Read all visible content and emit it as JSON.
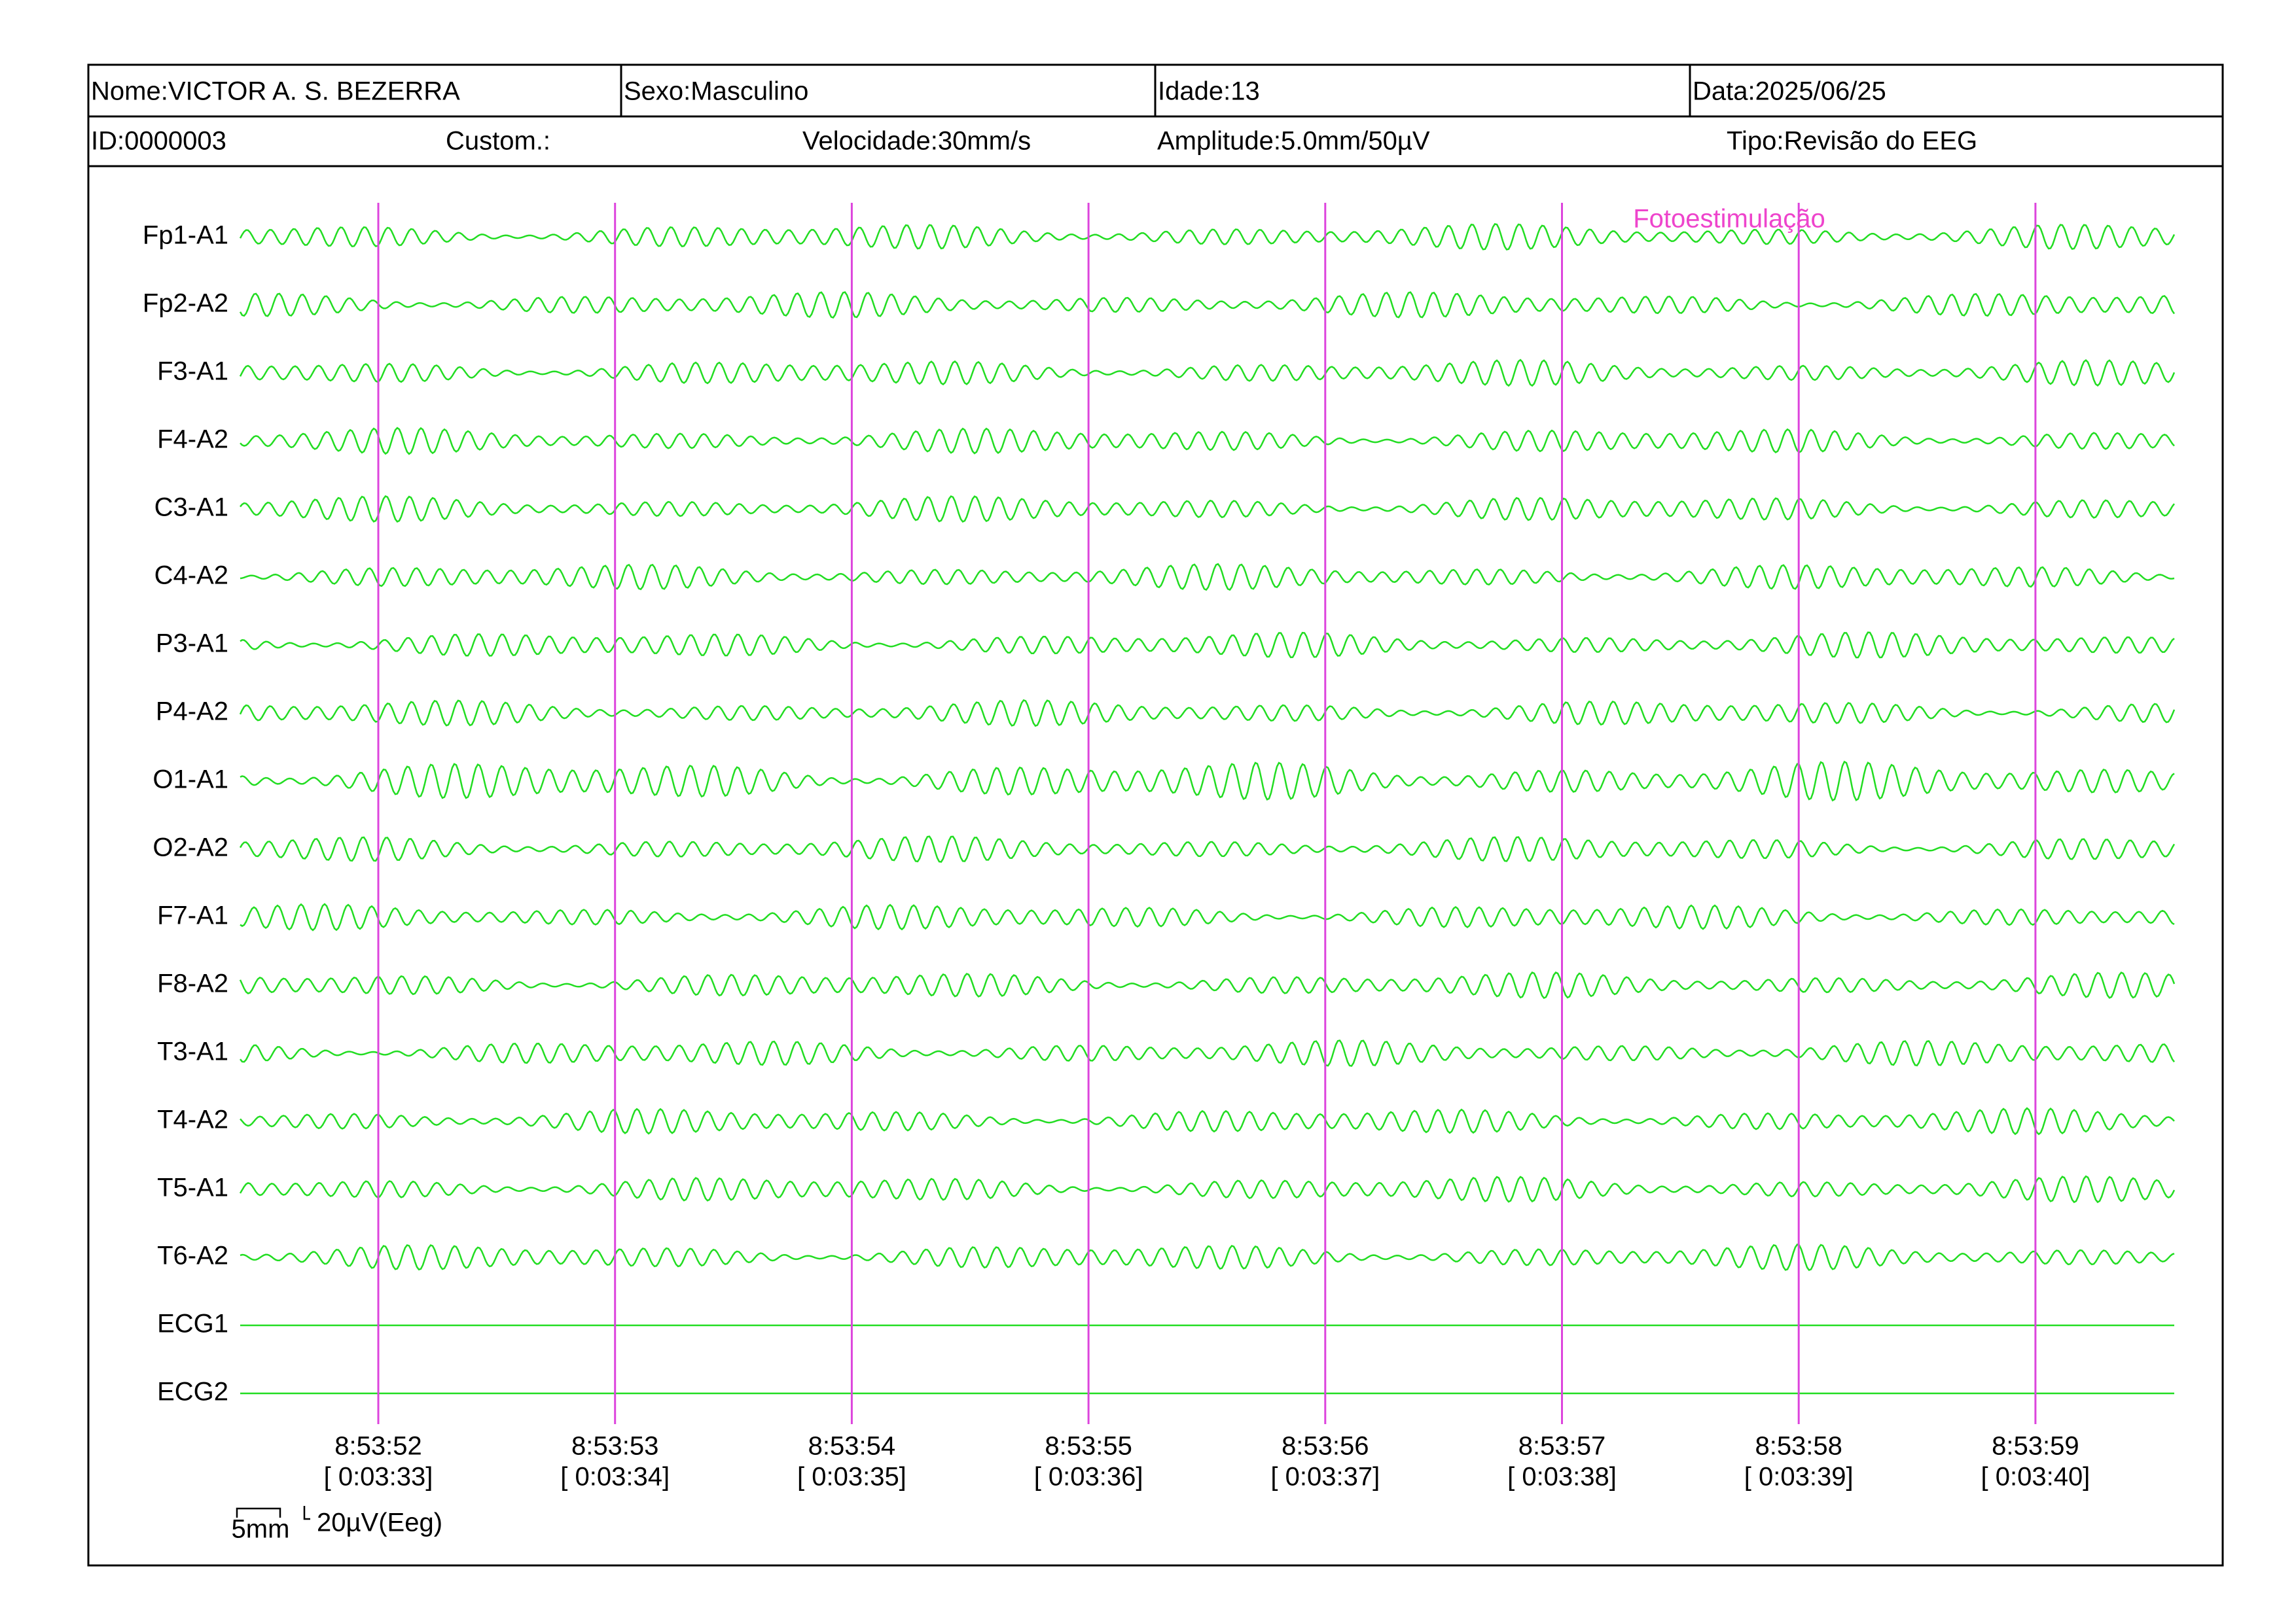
{
  "header": {
    "row1": [
      "Nome:VICTOR A. S. BEZERRA",
      "Sexo:Masculino",
      "Idade:13",
      "Data:2025/06/25"
    ],
    "row2": [
      "ID:0000003",
      "Custom.:",
      "Velocidade:30mm/s",
      "Amplitude:5.0mm/50µV",
      "Tipo:Revisão do EEG"
    ]
  },
  "channels": [
    "Fp1-A1",
    "Fp2-A2",
    "F3-A1",
    "F4-A2",
    "C3-A1",
    "C4-A2",
    "P3-A1",
    "P4-A2",
    "O1-A1",
    "O2-A2",
    "F7-A1",
    "F8-A2",
    "T3-A1",
    "T4-A2",
    "T5-A1",
    "T6-A2",
    "ECG1",
    "ECG2"
  ],
  "annotation": "Fotoestimulação",
  "time_marks": [
    {
      "clock": "8:53:52",
      "elapsed": "[ 0:03:33]"
    },
    {
      "clock": "8:53:53",
      "elapsed": "[ 0:03:34]"
    },
    {
      "clock": "8:53:54",
      "elapsed": "[ 0:03:35]"
    },
    {
      "clock": "8:53:55",
      "elapsed": "[ 0:03:36]"
    },
    {
      "clock": "8:53:56",
      "elapsed": "[ 0:03:37]"
    },
    {
      "clock": "8:53:57",
      "elapsed": "[ 0:03:38]"
    },
    {
      "clock": "8:53:58",
      "elapsed": "[ 0:03:39]"
    },
    {
      "clock": "8:53:59",
      "elapsed": "[ 0:03:40]"
    }
  ],
  "scale": {
    "time": "5mm",
    "amplitude": "20µV(Eeg)"
  }
}
